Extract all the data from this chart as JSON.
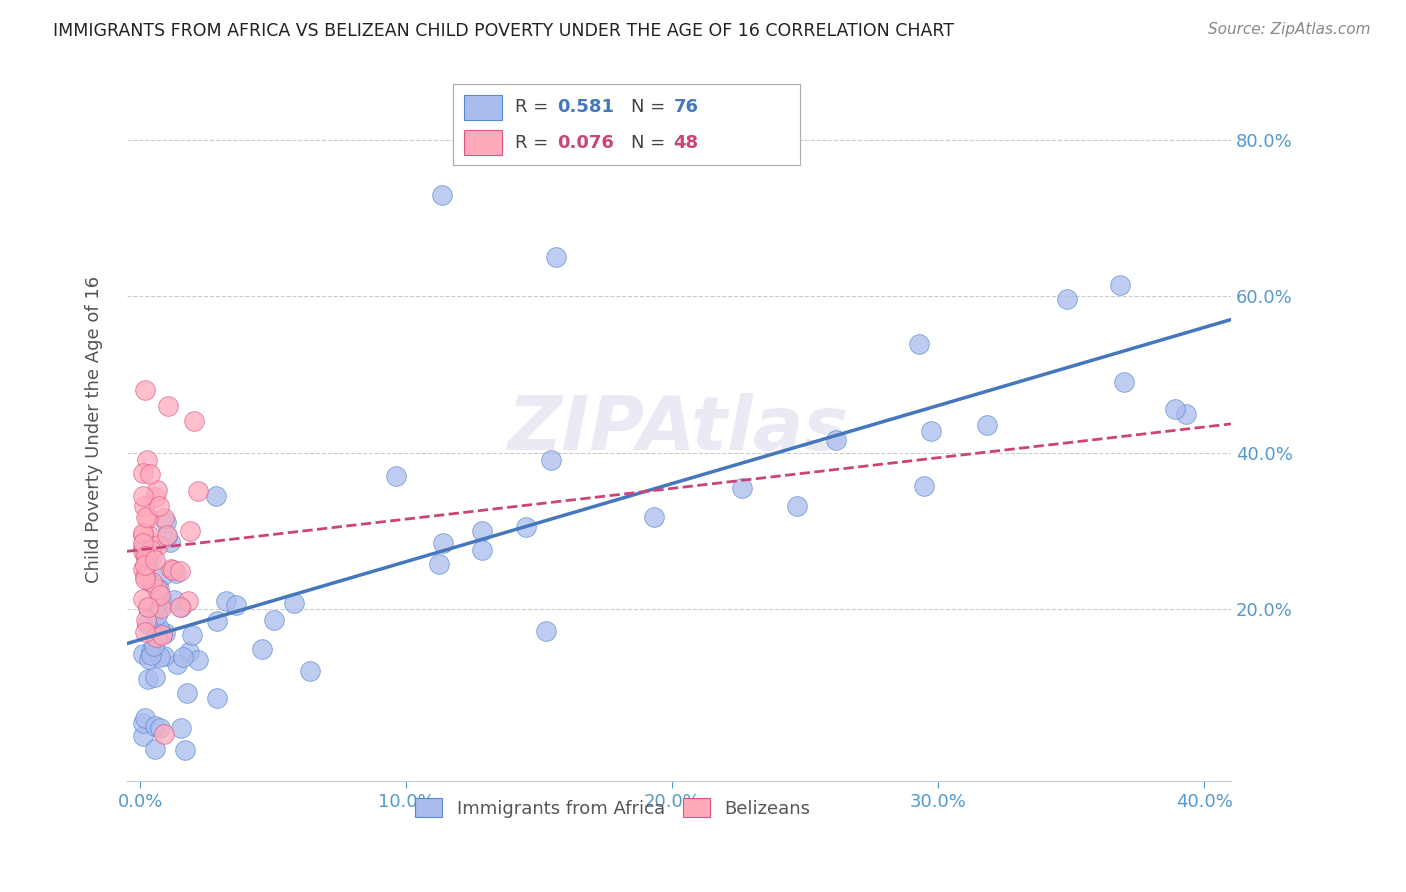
{
  "title": "IMMIGRANTS FROM AFRICA VS BELIZEAN CHILD POVERTY UNDER THE AGE OF 16 CORRELATION CHART",
  "source": "Source: ZipAtlas.com",
  "ylabel": "Child Poverty Under the Age of 16",
  "watermark": "ZIPAtlas",
  "series": [
    {
      "name": "Immigrants from Africa",
      "R": 0.581,
      "N": 76,
      "line_color": "#4477bb",
      "fill_color": "#aabbee",
      "edge_color": "#5588cc"
    },
    {
      "name": "Belizeans",
      "R": 0.076,
      "N": 48,
      "line_color": "#cc4477",
      "fill_color": "#ffaabb",
      "edge_color": "#dd5588"
    }
  ],
  "xlim": [
    -0.005,
    0.41
  ],
  "ylim": [
    -0.02,
    0.88
  ],
  "xticks": [
    0.0,
    0.1,
    0.2,
    0.3,
    0.4
  ],
  "yticks": [
    0.2,
    0.4,
    0.6,
    0.8
  ],
  "ytick_labels": [
    "20.0%",
    "40.0%",
    "60.0%",
    "80.0%"
  ],
  "xtick_labels": [
    "0.0%",
    "10.0%",
    "20.0%",
    "30.0%",
    "40.0%"
  ],
  "background_color": "#ffffff",
  "grid_color": "#cccccc",
  "title_color": "#333333",
  "axis_color": "#5599cc"
}
